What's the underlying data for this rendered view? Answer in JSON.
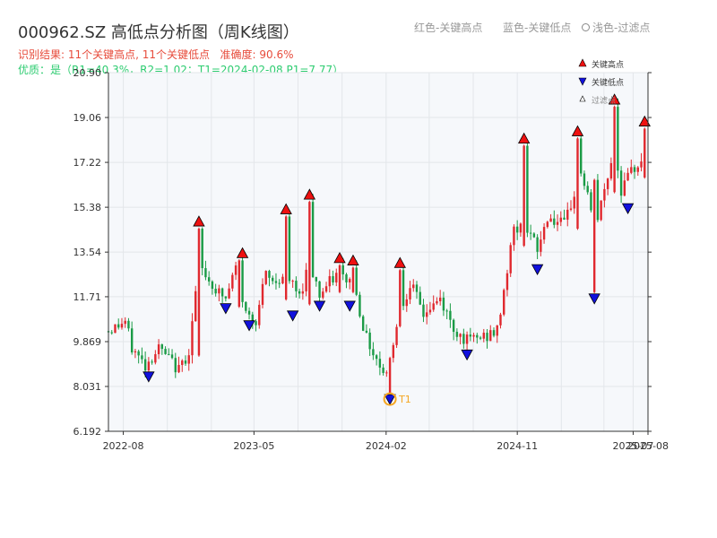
{
  "title": "000962.SZ 高低点分析图（周K线图）",
  "top_legend": {
    "red": "红色-关键高点",
    "blue": "蓝色-关键低点",
    "light": "浅色-过滤点"
  },
  "info_line1": {
    "result_label": "识别结果:",
    "result_text": "11个关键高点, 11个关键低点",
    "accuracy_label": "准确度:",
    "accuracy_value": "90.6%"
  },
  "info_line2": "优质：是（R1=40.3%，R2=1.02；T1=2024-02-08 P1=7.77）",
  "legend": {
    "high": "关键高点",
    "low": "关键低点",
    "filtered": "过滤点"
  },
  "colors": {
    "up": "#e0282e",
    "down": "#1a9b46",
    "high_marker": "#ee1111",
    "low_marker": "#1111dd",
    "t1_ring": "#f5a623",
    "plot_bg": "#f6f8fb",
    "grid": "#e3e6ea",
    "axis": "#333333"
  },
  "chart_data": {
    "type": "candlestick",
    "title": "000962.SZ 高低点分析图（周K线图）",
    "ylim": [
      6.192,
      20.9
    ],
    "y_ticks": [
      "6.192",
      "8.031",
      "9.869",
      "11.71",
      "13.54",
      "15.38",
      "17.22",
      "19.06",
      "20.90"
    ],
    "y_tick_values": [
      6.192,
      8.031,
      9.869,
      11.71,
      13.54,
      15.38,
      17.22,
      19.06,
      20.9
    ],
    "x_range": [
      "2022-07-01",
      "2025-08-01"
    ],
    "x_ticks": [
      "2022-08",
      "2023-05",
      "2024-02",
      "2024-11",
      "2025-07",
      "2025-08"
    ],
    "x_tick_dates": [
      "2022-08-01",
      "2023-05-01",
      "2024-02-01",
      "2024-11-01",
      "2025-07-01",
      "2025-08-01"
    ],
    "anchors": [
      [
        "2022-07-01",
        10.3
      ],
      [
        "2022-08-05",
        10.7
      ],
      [
        "2022-08-19",
        9.6
      ],
      [
        "2022-09-16",
        8.9
      ],
      [
        "2022-10-14",
        9.6
      ],
      [
        "2022-11-25",
        8.7
      ],
      [
        "2022-12-16",
        9.5
      ],
      [
        "2023-01-06",
        13.0
      ],
      [
        "2023-02-10",
        12.0
      ],
      [
        "2023-03-03",
        11.6
      ],
      [
        "2023-03-24",
        12.9
      ],
      [
        "2023-04-14",
        11.0
      ],
      [
        "2023-05-05",
        10.8
      ],
      [
        "2023-05-26",
        12.6
      ],
      [
        "2023-06-09",
        12.3
      ],
      [
        "2023-07-07",
        12.6
      ],
      [
        "2023-08-04",
        11.7
      ],
      [
        "2023-08-25",
        13.2
      ],
      [
        "2023-09-15",
        11.8
      ],
      [
        "2023-10-20",
        12.6
      ],
      [
        "2023-11-24",
        12.3
      ],
      [
        "2023-12-22",
        10.0
      ],
      [
        "2024-01-19",
        8.9
      ],
      [
        "2024-02-02",
        8.6
      ],
      [
        "2024-02-23",
        10.6
      ],
      [
        "2024-03-22",
        12.3
      ],
      [
        "2024-04-19",
        11.0
      ],
      [
        "2024-05-24",
        11.6
      ],
      [
        "2024-06-21",
        10.4
      ],
      [
        "2024-07-19",
        9.9
      ],
      [
        "2024-08-30",
        10.1
      ],
      [
        "2024-09-20",
        10.3
      ],
      [
        "2024-10-04",
        12.0
      ],
      [
        "2024-10-25",
        14.5
      ],
      [
        "2024-11-22",
        14.5
      ],
      [
        "2024-12-13",
        13.6
      ],
      [
        "2025-01-03",
        15.0
      ],
      [
        "2025-02-07",
        14.6
      ],
      [
        "2025-03-14",
        16.8
      ],
      [
        "2025-03-28",
        15.9
      ],
      [
        "2025-04-11",
        14.2
      ],
      [
        "2025-04-25",
        15.5
      ],
      [
        "2025-05-23",
        17.8
      ],
      [
        "2025-06-06",
        16.1
      ],
      [
        "2025-06-27",
        16.8
      ],
      [
        "2025-07-25",
        17.6
      ]
    ],
    "spikes": [
      [
        "2023-01-06",
        9.3,
        14.5
      ],
      [
        "2023-03-31",
        11.3,
        13.2
      ],
      [
        "2023-07-07",
        11.6,
        15.0
      ],
      [
        "2023-08-25",
        11.4,
        15.6
      ],
      [
        "2023-10-27",
        11.9,
        13.0
      ],
      [
        "2023-11-24",
        11.9,
        12.9
      ],
      [
        "2024-02-09",
        7.77,
        9.2
      ],
      [
        "2024-03-01",
        10.5,
        12.8
      ],
      [
        "2024-11-15",
        13.8,
        17.9
      ],
      [
        "2025-03-07",
        14.5,
        18.2
      ],
      [
        "2025-04-11",
        11.9,
        16.5
      ],
      [
        "2025-05-23",
        16.0,
        19.5
      ],
      [
        "2025-07-25",
        16.6,
        18.6
      ]
    ],
    "key_highs": [
      [
        "2023-01-06",
        14.5
      ],
      [
        "2023-04-07",
        13.2
      ],
      [
        "2023-07-07",
        15.0
      ],
      [
        "2023-08-25",
        15.6
      ],
      [
        "2023-10-27",
        13.0
      ],
      [
        "2023-11-24",
        12.9
      ],
      [
        "2024-03-01",
        12.8
      ],
      [
        "2024-11-15",
        17.9
      ],
      [
        "2025-03-07",
        18.2
      ],
      [
        "2025-05-23",
        19.5
      ],
      [
        "2025-07-25",
        18.6
      ]
    ],
    "key_lows": [
      [
        "2022-09-23",
        8.7
      ],
      [
        "2023-03-03",
        11.5
      ],
      [
        "2023-04-21",
        10.8
      ],
      [
        "2023-07-21",
        11.2
      ],
      [
        "2023-09-15",
        11.6
      ],
      [
        "2023-11-17",
        11.6
      ],
      [
        "2024-07-19",
        9.6
      ],
      [
        "2024-12-13",
        13.1
      ],
      [
        "2025-04-11",
        11.9
      ],
      [
        "2025-06-20",
        15.6
      ],
      [
        "2024-02-09",
        7.77
      ]
    ],
    "t1": {
      "date": "2024-02-09",
      "value": 7.77,
      "label": "T1"
    }
  }
}
